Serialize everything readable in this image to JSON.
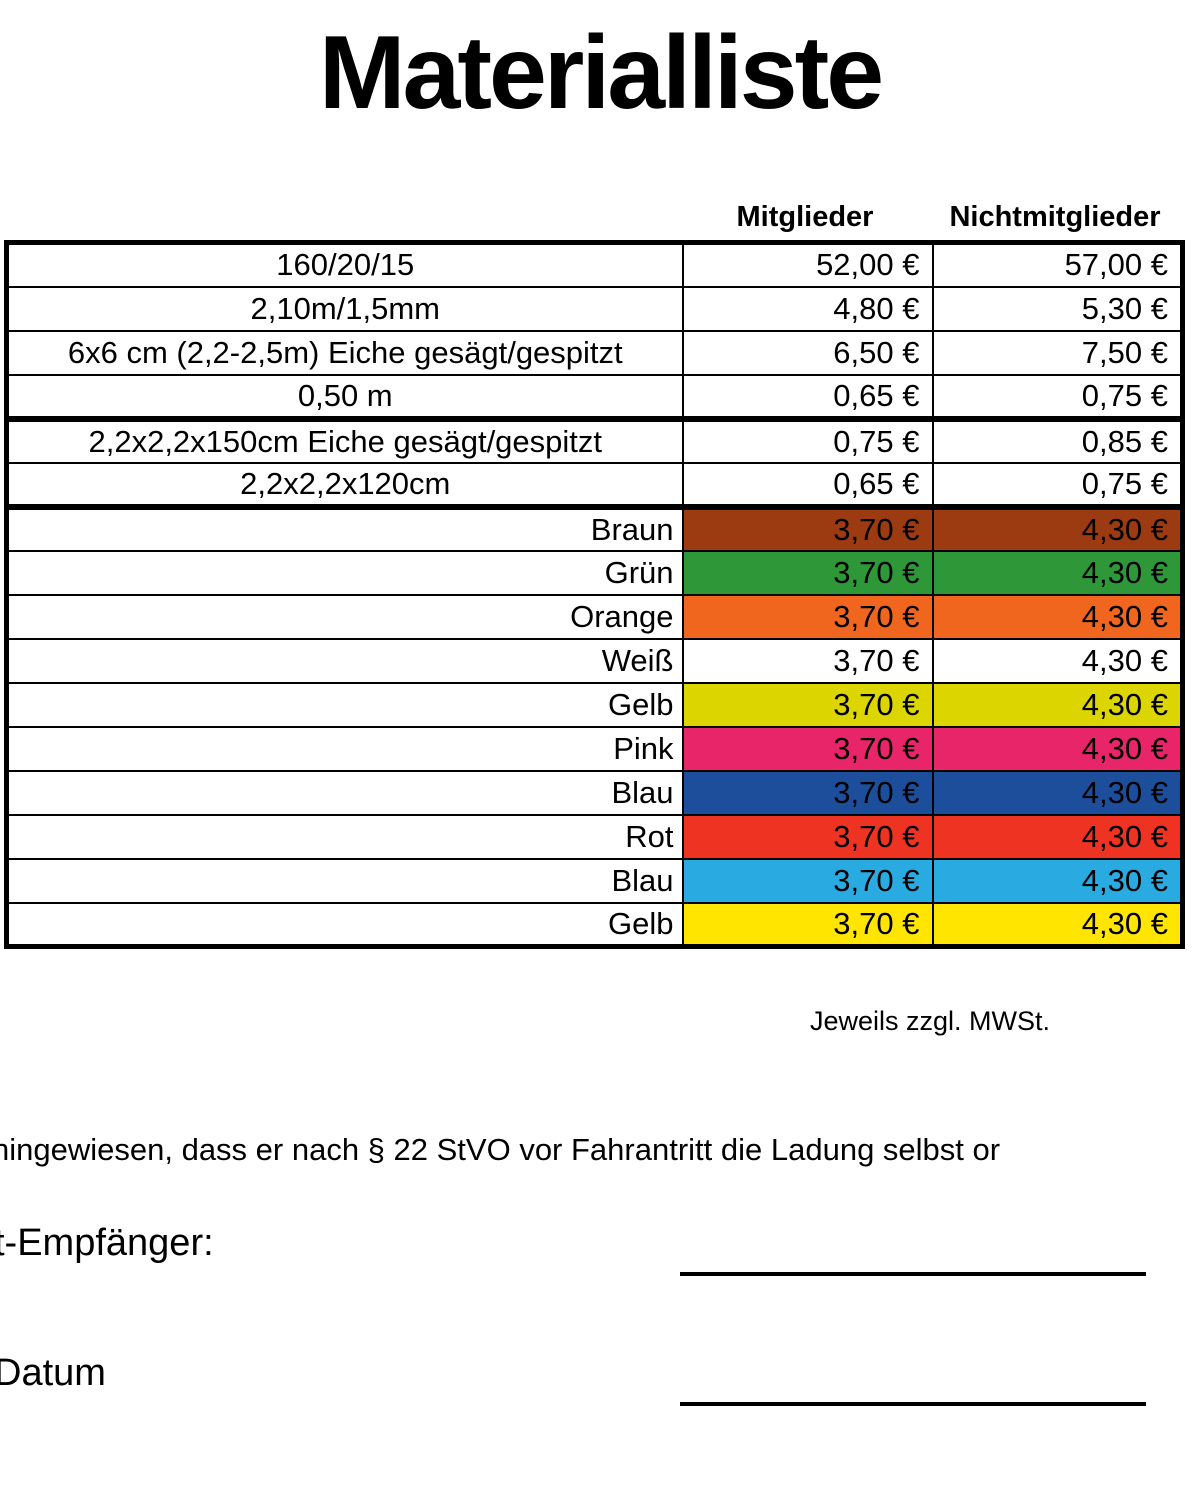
{
  "title": "Materialliste",
  "table": {
    "headers": [
      "Mitglieder",
      "Nichtmitglieder"
    ],
    "rows": [
      {
        "label": "160/20/15",
        "align": "center",
        "mitglieder": "52,00 €",
        "nichtmitglieder": "57,00 €",
        "bg": "",
        "thick_bottom": false
      },
      {
        "label": "2,10m/1,5mm",
        "align": "center",
        "mitglieder": "4,80 €",
        "nichtmitglieder": "5,30 €",
        "bg": "",
        "thick_bottom": false
      },
      {
        "label": "6x6 cm (2,2-2,5m) Eiche gesägt/gespitzt",
        "align": "center",
        "mitglieder": "6,50 €",
        "nichtmitglieder": "7,50 €",
        "bg": "",
        "thick_bottom": false
      },
      {
        "label": "0,50 m",
        "align": "center",
        "mitglieder": "0,65 €",
        "nichtmitglieder": "0,75 €",
        "bg": "",
        "thick_bottom": true
      },
      {
        "label": "2,2x2,2x150cm  Eiche gesägt/gespitzt",
        "align": "center",
        "mitglieder": "0,75 €",
        "nichtmitglieder": "0,85 €",
        "bg": "",
        "thick_bottom": false
      },
      {
        "label": "2,2x2,2x120cm",
        "align": "center",
        "mitglieder": "0,65 €",
        "nichtmitglieder": "0,75 €",
        "bg": "",
        "thick_bottom": true
      },
      {
        "label": "Braun",
        "align": "right",
        "mitglieder": "3,70 €",
        "nichtmitglieder": "4,30 €",
        "bg": "#9C3A12",
        "thick_bottom": false
      },
      {
        "label": "Grün",
        "align": "right",
        "mitglieder": "3,70 €",
        "nichtmitglieder": "4,30 €",
        "bg": "#2E9839",
        "thick_bottom": false
      },
      {
        "label": "Orange",
        "align": "right",
        "mitglieder": "3,70 €",
        "nichtmitglieder": "4,30 €",
        "bg": "#F1661F",
        "thick_bottom": false
      },
      {
        "label": "Weiß",
        "align": "right",
        "mitglieder": "3,70 €",
        "nichtmitglieder": "4,30 €",
        "bg": "#FFFFFF",
        "thick_bottom": false
      },
      {
        "label": "Gelb",
        "align": "right",
        "mitglieder": "3,70 €",
        "nichtmitglieder": "4,30 €",
        "bg": "#DCD500",
        "thick_bottom": false
      },
      {
        "label": "Pink",
        "align": "right",
        "mitglieder": "3,70 €",
        "nichtmitglieder": "4,30 €",
        "bg": "#E9256A",
        "thick_bottom": false
      },
      {
        "label": "Blau",
        "align": "right",
        "mitglieder": "3,70 €",
        "nichtmitglieder": "4,30 €",
        "bg": "#1C4E9B",
        "thick_bottom": false
      },
      {
        "label": "Rot",
        "align": "right",
        "mitglieder": "3,70 €",
        "nichtmitglieder": "4,30 €",
        "bg": "#EE3323",
        "thick_bottom": false
      },
      {
        "label": "Blau",
        "align": "right",
        "mitglieder": "3,70 €",
        "nichtmitglieder": "4,30 €",
        "bg": "#29ABE2",
        "thick_bottom": false
      },
      {
        "label": "Gelb",
        "align": "right",
        "mitglieder": "3,70 €",
        "nichtmitglieder": "4,30 €",
        "bg": "#FFE500",
        "thick_bottom": false
      }
    ]
  },
  "note": "Jeweils zzgl. MWSt.",
  "notice": "hingewiesen, dass er nach § 22 StVO vor Fahrantritt die Ladung selbst or",
  "fields": {
    "recipient_label": "t-Empfänger:",
    "date_label": "Datum"
  }
}
